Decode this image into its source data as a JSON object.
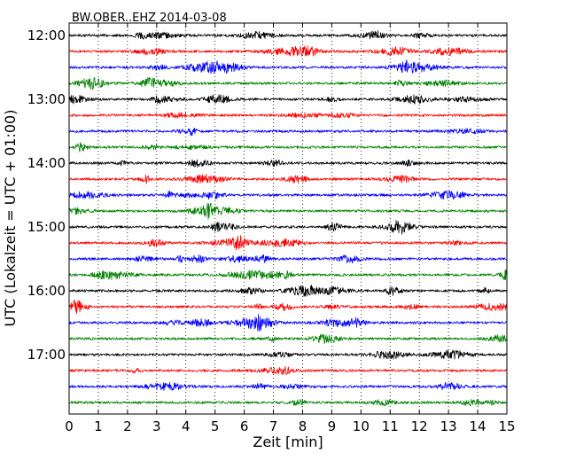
{
  "chart_data": {
    "type": "line",
    "title": "BW.OBER..EHZ 2014-03-08",
    "xlabel": "Zeit  [min]",
    "ylabel": "UTC (Lokalzeit = UTC + 01:00)",
    "xlim": [
      0,
      15
    ],
    "x_ticks": [
      "0",
      "1",
      "2",
      "3",
      "4",
      "5",
      "6",
      "7",
      "8",
      "9",
      "10",
      "11",
      "12",
      "13",
      "14",
      "15"
    ],
    "y_ticks": [
      "12:00",
      "13:00",
      "14:00",
      "15:00",
      "16:00",
      "17:00"
    ],
    "grid": "vertical dotted",
    "trace_colors": [
      "#000000",
      "#ff0000",
      "#0000ff",
      "#008000"
    ],
    "traces": [
      {
        "start": "12:00",
        "color": "#000000"
      },
      {
        "start": "12:15",
        "color": "#ff0000"
      },
      {
        "start": "12:30",
        "color": "#0000ff"
      },
      {
        "start": "12:45",
        "color": "#008000"
      },
      {
        "start": "13:00",
        "color": "#000000"
      },
      {
        "start": "13:15",
        "color": "#ff0000"
      },
      {
        "start": "13:30",
        "color": "#0000ff"
      },
      {
        "start": "13:45",
        "color": "#008000"
      },
      {
        "start": "14:00",
        "color": "#000000"
      },
      {
        "start": "14:15",
        "color": "#ff0000"
      },
      {
        "start": "14:30",
        "color": "#0000ff"
      },
      {
        "start": "14:45",
        "color": "#008000"
      },
      {
        "start": "15:00",
        "color": "#000000"
      },
      {
        "start": "15:15",
        "color": "#ff0000"
      },
      {
        "start": "15:30",
        "color": "#0000ff"
      },
      {
        "start": "15:45",
        "color": "#008000"
      },
      {
        "start": "16:00",
        "color": "#000000"
      },
      {
        "start": "16:15",
        "color": "#ff0000"
      },
      {
        "start": "16:30",
        "color": "#0000ff"
      },
      {
        "start": "16:45",
        "color": "#008000"
      },
      {
        "start": "17:00",
        "color": "#000000"
      },
      {
        "start": "17:15",
        "color": "#ff0000"
      },
      {
        "start": "17:30",
        "color": "#0000ff"
      },
      {
        "start": "17:45",
        "color": "#008000"
      }
    ]
  }
}
